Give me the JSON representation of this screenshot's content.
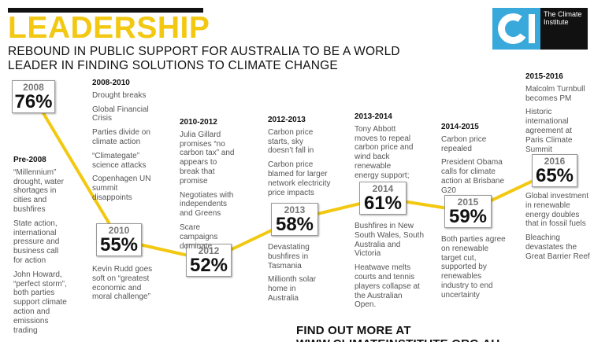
{
  "header": {
    "title": "LEADERSHIP",
    "subtitle": "REBOUND IN PUBLIC SUPPORT FOR AUSTRALIA TO BE A WORLD LEADER IN FINDING SOLUTIONS TO CLIMATE CHANGE"
  },
  "logo": {
    "text": "The Climate Institute",
    "icon": "climate-institute-ci-logo"
  },
  "colors": {
    "line": "#f2c811",
    "title": "#f2c811",
    "logo_blue": "#39a9dc"
  },
  "chart_data": {
    "type": "line",
    "title": "LEADERSHIP",
    "subtitle": "REBOUND IN PUBLIC SUPPORT FOR AUSTRALIA TO BE A WORLD LEADER IN FINDING SOLUTIONS TO CLIMATE CHANGE",
    "x": [
      "2008",
      "2010",
      "2012",
      "2013",
      "2014",
      "2015",
      "2016"
    ],
    "values": [
      76,
      55,
      52,
      58,
      61,
      59,
      65
    ],
    "labels": [
      "76%",
      "55%",
      "52%",
      "58%",
      "61%",
      "59%",
      "65%"
    ],
    "ylim": [
      45,
      80
    ],
    "grid": false,
    "legend": "none"
  },
  "annotations": [
    {
      "heading": "Pre-2008",
      "items": [
        "“Millennium” drought, water shortages in cities and bushfires",
        "State action, international pressure and business call for action",
        "John Howard, “perfect storm”, both parties support climate action and emissions trading"
      ]
    },
    {
      "heading": "2008-2010",
      "items": [
        "Drought breaks",
        "Global Financial Crisis",
        "Parties divide on climate action",
        "“Climategate” science attacks",
        "Copenhagen UN summit disappoints"
      ]
    },
    {
      "heading": "",
      "items": [
        "Kevin Rudd goes soft on “greatest economic and moral challenge”"
      ]
    },
    {
      "heading": "2010-2012",
      "items": [
        "Julia Gillard promises “no carbon tax” and appears to break that promise",
        "Negotiates with independents and Greens",
        "Scare campaigns dominate"
      ]
    },
    {
      "heading": "2012-2013",
      "items": [
        "Carbon price starts, sky doesn’t fall in",
        "Carbon price blamed for larger network electricity price impacts"
      ]
    },
    {
      "heading": "",
      "items": [
        "Devastating bushfires in Tasmania",
        "Millionth solar home in Australia"
      ]
    },
    {
      "heading": "2013-2014",
      "items": [
        "Tony Abbott moves to repeal carbon price and wind back renewable energy support;"
      ]
    },
    {
      "heading": "",
      "items": [
        "Bushfires in New South Wales, South Australia and Victoria",
        "Heatwave melts courts and tennis players collapse at the Australian Open."
      ]
    },
    {
      "heading": "2014-2015",
      "items": [
        "Carbon price repealed",
        "President Obama calls for climate action at Brisbane G20"
      ]
    },
    {
      "heading": "",
      "items": [
        "Both parties agree on renewable target cut, supported by renewables industry to end uncertainty"
      ]
    },
    {
      "heading": "2015-2016",
      "items": [
        "Malcolm Turnbull becomes PM",
        "Historic international agreement at Paris Climate Summit"
      ]
    },
    {
      "heading": "",
      "items": [
        "Global investment in renewable energy doubles that in fossil fuels",
        "Bleaching devastates the Great Barrier Reef"
      ]
    }
  ],
  "footer": {
    "text": "FIND OUT MORE AT WWW.CLIMATEINSTITUTE.ORG.AU"
  }
}
